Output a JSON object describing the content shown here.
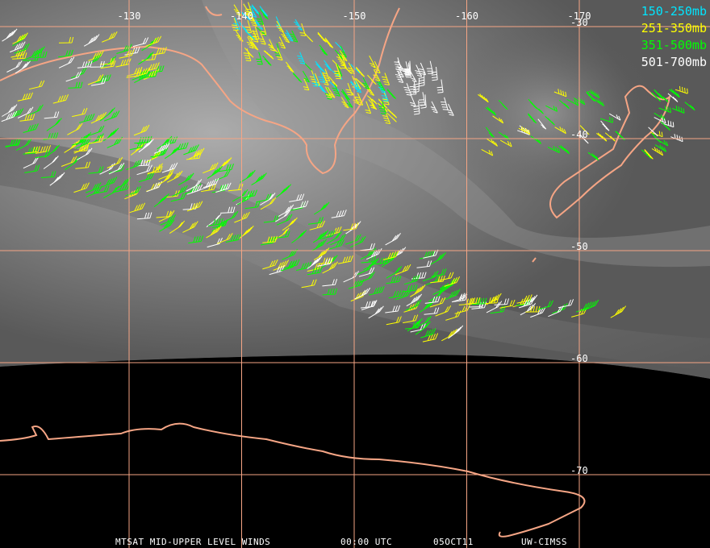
{
  "map": {
    "longitudes": [
      -130,
      -140,
      -150,
      -160,
      -170
    ],
    "latitudes": [
      -30,
      -40,
      -50,
      -60,
      -70
    ],
    "legend": [
      {
        "label": "150-250mb",
        "color": "#00e5ff"
      },
      {
        "label": "251-350mb",
        "color": "#ffff00"
      },
      {
        "label": "351-500mb",
        "color": "#00ff00"
      },
      {
        "label": "501-700mb",
        "color": "#ffffff"
      }
    ],
    "footer": {
      "product": "MTSAT MID-UPPER LEVEL WINDS",
      "time": "00:00 UTC",
      "date": "05OCT11",
      "source": "UW-CIMSS"
    }
  }
}
